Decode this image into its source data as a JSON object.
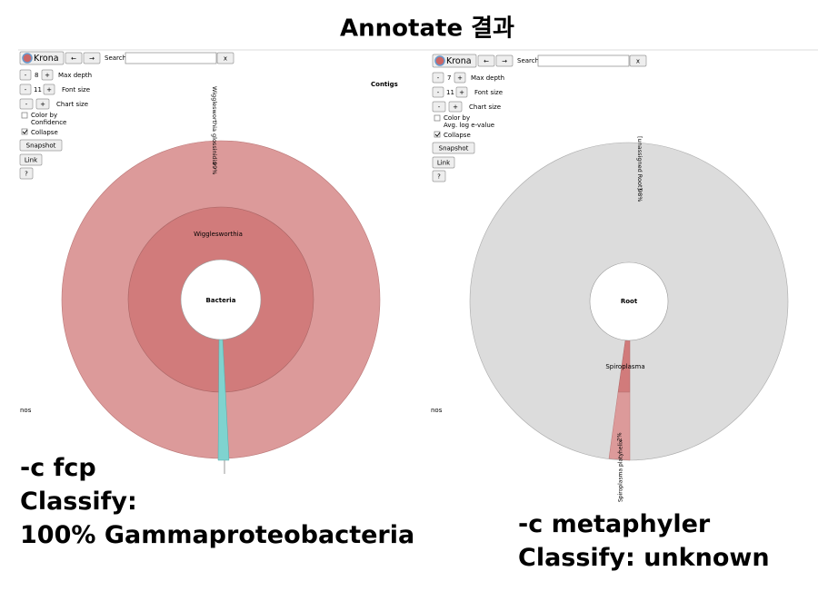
{
  "title": "Annotate 결과",
  "panels": [
    {
      "controls": {
        "krona": "Krona",
        "back": "←",
        "forward": "→",
        "search": "Search:",
        "clear": "x",
        "minus": "-",
        "plus": "+",
        "depth": "8",
        "depth_label": "Max depth",
        "font": "11",
        "font_label": "Font size",
        "chart_label": "Chart size",
        "color_by": [
          "Color by",
          "Confidence"
        ],
        "collapse": "Collapse",
        "snapshot": "Snapshot",
        "link": "Link",
        "help": "?"
      },
      "dataset": "Contigs",
      "labels": {
        "center": "Bacteria",
        "ring": "Wigglesworthia",
        "outer": "Wigglesworthia glossinidia",
        "percent": "99%",
        "side": "nos"
      },
      "caption": [
        "-c fcp",
        "Classify:",
        "100% Gammaproteobacteria"
      ]
    },
    {
      "controls": {
        "krona": "Krona",
        "back": "←",
        "forward": "→",
        "search": "Search:",
        "clear": "x",
        "minus": "-",
        "plus": "+",
        "depth": "7",
        "depth_label": "Max depth",
        "font": "11",
        "font_label": "Font size",
        "chart_label": "Chart size",
        "color_by": [
          "Color by",
          "Avg. log e-value"
        ],
        "collapse": "Collapse",
        "snapshot": "Snapshot",
        "link": "Link",
        "help": "?"
      },
      "labels": {
        "center": "Root",
        "outer": "[unassigned Root]",
        "percent": "98%",
        "ring": "Spiroplasma",
        "small": "Spiroplasma platyhelix",
        "small_percent": "2%",
        "side": "nos"
      },
      "caption": [
        "-c metaphyler",
        "Classify: unknown"
      ]
    }
  ]
}
